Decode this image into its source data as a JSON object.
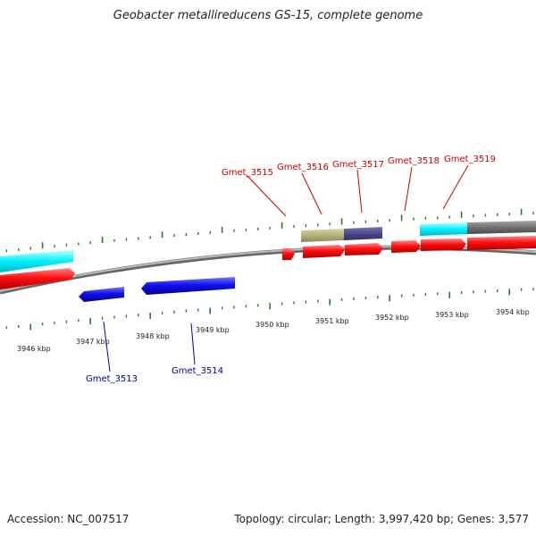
{
  "title": "Geobacter metallireducens GS-15, complete genome",
  "footer": {
    "accession": "Accession: NC_007517",
    "summary": "Topology: circular; Length: 3,997,420 bp; Genes: 3,577"
  },
  "colors": {
    "forward_gene": "#ff0000",
    "reverse_gene": "#0000ff",
    "forward_label": "#cc0000",
    "reverse_label": "#000099",
    "cyan_feature": "#00ffff",
    "olive_feature": "#b5b07a",
    "slate_feature": "#4a4a8c",
    "gray_feature": "#707070",
    "backbone": "#909090",
    "tick": "#2a7a2a"
  },
  "ruler": {
    "labels": [
      "3946 kbp",
      "3947 kbp",
      "3948 kbp",
      "3949 kbp",
      "3950 kbp",
      "3951 kbp",
      "3952 kbp",
      "3953 kbp",
      "3954 kbp"
    ]
  },
  "gene_labels": {
    "forward": [
      "Gmet_3515",
      "Gmet_3516",
      "Gmet_3517",
      "Gmet_3518",
      "Gmet_3519"
    ],
    "reverse": [
      "Gmet_3513",
      "Gmet_3514"
    ]
  }
}
